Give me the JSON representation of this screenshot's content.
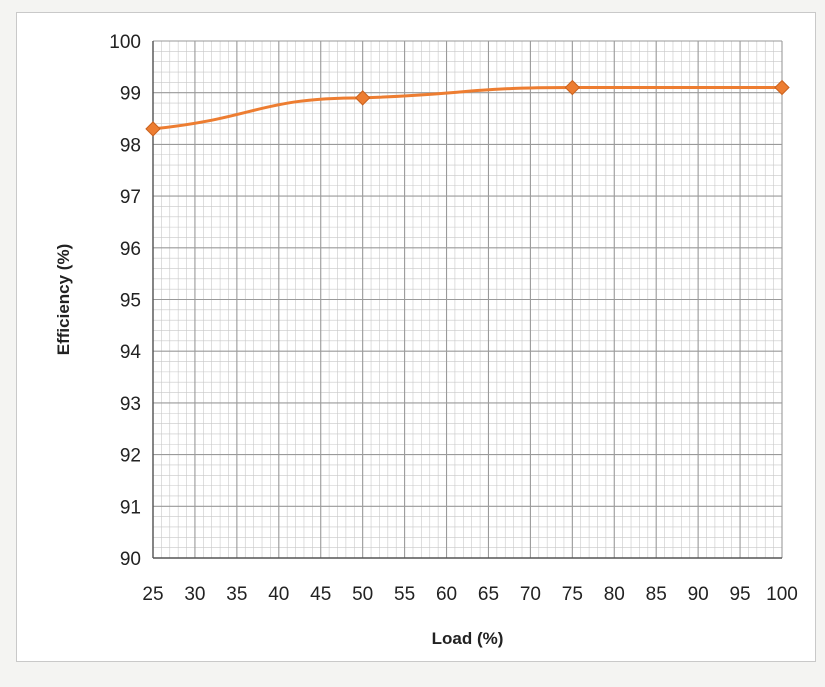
{
  "chart_data": {
    "type": "line",
    "title": "",
    "xlabel": "Load (%)",
    "ylabel": "Efficiency (%)",
    "x": [
      25,
      50,
      75,
      100
    ],
    "series": [
      {
        "values": [
          98.3,
          98.9,
          99.1,
          99.1
        ]
      }
    ],
    "xlim": [
      25,
      100
    ],
    "ylim": [
      90,
      100
    ],
    "xticks": [
      25,
      30,
      35,
      40,
      45,
      50,
      55,
      60,
      65,
      70,
      75,
      80,
      85,
      90,
      95,
      100
    ],
    "yticks": [
      90,
      91,
      92,
      93,
      94,
      95,
      96,
      97,
      98,
      99,
      100
    ],
    "grid": true,
    "legend": "none",
    "colors": {
      "series": "#ed7d31",
      "grid_major": "#9a9a9a",
      "grid_minor": "#c8c8c8"
    },
    "marker": "diamond"
  }
}
